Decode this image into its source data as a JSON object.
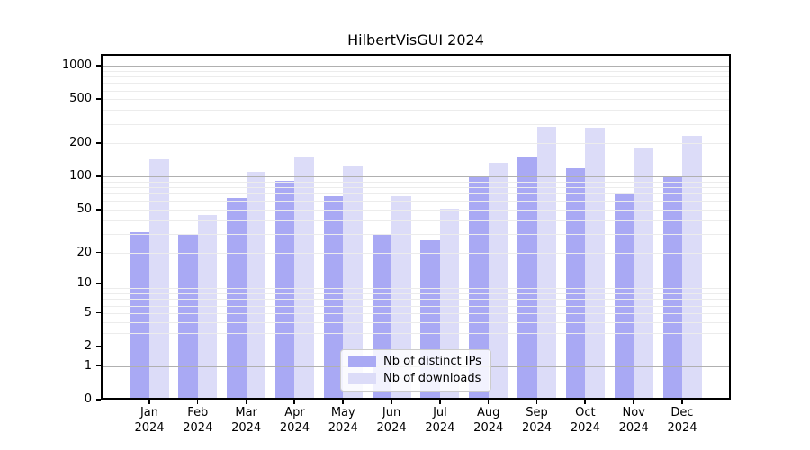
{
  "title": "HilbertVisGUI 2024",
  "chart_data": {
    "type": "bar",
    "title": "HilbertVisGUI 2024",
    "categories": [
      "Jan",
      "Feb",
      "Mar",
      "Apr",
      "May",
      "Jun",
      "Jul",
      "Aug",
      "Sep",
      "Oct",
      "Nov",
      "Dec"
    ],
    "year_label": "2024",
    "series": [
      {
        "name": "Nb of distinct IPs",
        "color": "#a9a9f4",
        "values": [
          31,
          30,
          64,
          92,
          66,
          29,
          26,
          100,
          152,
          118,
          72,
          100
        ]
      },
      {
        "name": "Nb of downloads",
        "color": "#dcdcf8",
        "values": [
          144,
          45,
          111,
          152,
          123,
          67,
          51,
          134,
          280,
          275,
          183,
          233
        ]
      }
    ],
    "y_axis": {
      "scale": "log10(1+x)",
      "tick_values": [
        0,
        1,
        2,
        5,
        10,
        20,
        50,
        100,
        200,
        500,
        1000
      ],
      "major_grid_values": [
        1,
        10,
        100,
        1000
      ],
      "minor_grid_values": [
        2,
        3,
        4,
        5,
        6,
        7,
        8,
        9,
        20,
        30,
        40,
        50,
        60,
        70,
        80,
        90,
        200,
        300,
        400,
        500,
        600,
        700,
        800,
        900
      ],
      "range_top": 1278
    },
    "xlabel": "",
    "ylabel": "",
    "grid": true,
    "legend_position": "lower-center-inside"
  },
  "colors": {
    "major_grid": "#b0b0b0",
    "minor_grid": "#ececec",
    "frame": "#000000",
    "background": "#ffffff"
  }
}
